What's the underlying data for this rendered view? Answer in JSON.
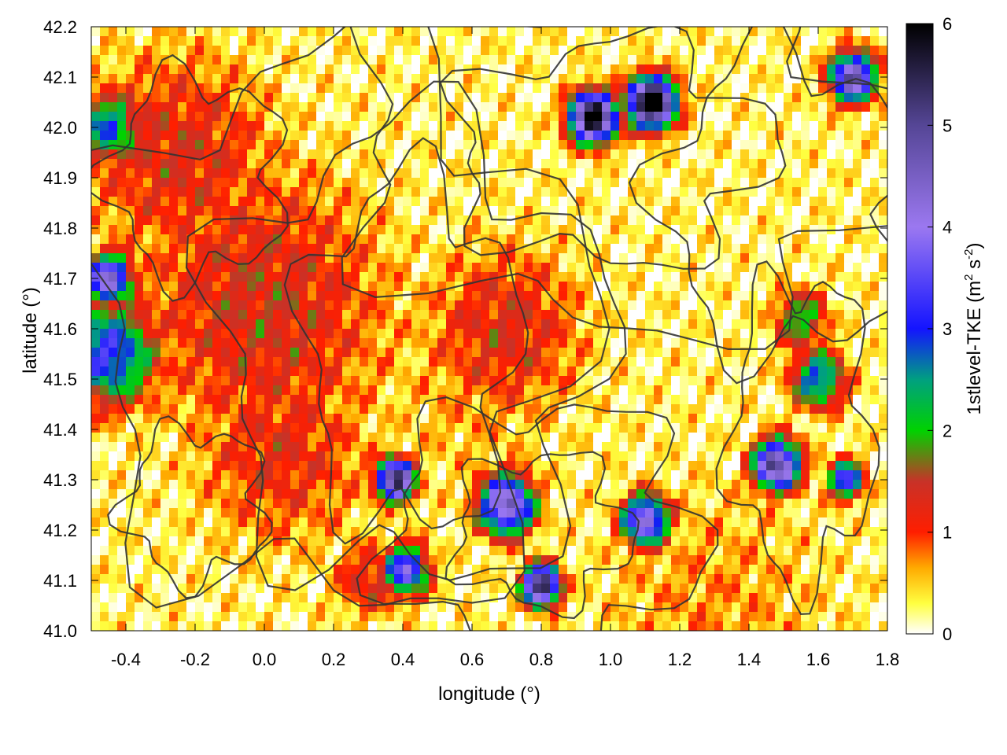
{
  "chart_data": {
    "type": "heatmap",
    "title": "",
    "xlabel": "longitude (°)",
    "ylabel": "latitude (°)",
    "colorbar_label": "1stlevel-TKE (m",
    "colorbar_label_sup1": "2",
    "colorbar_label_mid": " s",
    "colorbar_label_sup2": "-2",
    "colorbar_label_end": ")",
    "xlim": [
      -0.5,
      1.8
    ],
    "ylim": [
      41.0,
      42.2
    ],
    "zlim": [
      0,
      6
    ],
    "x_ticks": [
      "-0.4",
      "-0.2",
      "0.0",
      "0.2",
      "0.4",
      "0.6",
      "0.8",
      "1.0",
      "1.2",
      "1.4",
      "1.6",
      "1.8"
    ],
    "x_tick_values": [
      -0.4,
      -0.2,
      0.0,
      0.2,
      0.4,
      0.6,
      0.8,
      1.0,
      1.2,
      1.4,
      1.6,
      1.8
    ],
    "y_ticks": [
      "41.0",
      "41.1",
      "41.2",
      "41.3",
      "41.4",
      "41.5",
      "41.6",
      "41.7",
      "41.8",
      "41.9",
      "42.0",
      "42.1",
      "42.2"
    ],
    "y_tick_values": [
      41.0,
      41.1,
      41.2,
      41.3,
      41.4,
      41.5,
      41.6,
      41.7,
      41.8,
      41.9,
      42.0,
      42.1,
      42.2
    ],
    "z_ticks": [
      "0",
      "1",
      "2",
      "3",
      "4",
      "5",
      "6"
    ],
    "z_tick_values": [
      0,
      1,
      2,
      3,
      4,
      5,
      6
    ],
    "colormap": [
      {
        "v": 0.0,
        "color": "#ffffff"
      },
      {
        "v": 0.3,
        "color": "#ffff40"
      },
      {
        "v": 0.65,
        "color": "#ffaa00"
      },
      {
        "v": 1.0,
        "color": "#ff1e00"
      },
      {
        "v": 1.5,
        "color": "#c83228"
      },
      {
        "v": 2.0,
        "color": "#00d200"
      },
      {
        "v": 2.5,
        "color": "#00a080"
      },
      {
        "v": 3.0,
        "color": "#1414ff"
      },
      {
        "v": 4.0,
        "color": "#9b78f0"
      },
      {
        "v": 5.0,
        "color": "#554696"
      },
      {
        "v": 6.0,
        "color": "#000000"
      }
    ],
    "grid": false,
    "contour_color": "#333333",
    "features": [
      {
        "lon": 0.0,
        "lat": 41.65,
        "value": 1.2,
        "spread": 0.28
      },
      {
        "lon": -0.25,
        "lat": 41.95,
        "value": 1.1,
        "spread": 0.22
      },
      {
        "lon": 0.05,
        "lat": 41.35,
        "value": 1.0,
        "spread": 0.2
      },
      {
        "lon": 0.7,
        "lat": 41.6,
        "value": 1.1,
        "spread": 0.18
      },
      {
        "lon": -0.45,
        "lat": 41.55,
        "value": 2.8,
        "spread": 0.1
      },
      {
        "lon": -0.45,
        "lat": 41.7,
        "value": 3.6,
        "spread": 0.05
      },
      {
        "lon": -0.45,
        "lat": 42.0,
        "value": 2.3,
        "spread": 0.07
      },
      {
        "lon": 0.41,
        "lat": 41.12,
        "value": 3.2,
        "spread": 0.05
      },
      {
        "lon": 0.38,
        "lat": 41.3,
        "value": 4.8,
        "spread": 0.04
      },
      {
        "lon": 0.95,
        "lat": 42.02,
        "value": 5.5,
        "spread": 0.05
      },
      {
        "lon": 1.12,
        "lat": 42.05,
        "value": 6.0,
        "spread": 0.05
      },
      {
        "lon": 0.8,
        "lat": 41.09,
        "value": 5.0,
        "spread": 0.04
      },
      {
        "lon": 0.7,
        "lat": 41.25,
        "value": 4.0,
        "spread": 0.06
      },
      {
        "lon": 1.1,
        "lat": 41.22,
        "value": 3.8,
        "spread": 0.05
      },
      {
        "lon": 1.48,
        "lat": 41.33,
        "value": 4.5,
        "spread": 0.05
      },
      {
        "lon": 1.68,
        "lat": 41.3,
        "value": 3.0,
        "spread": 0.04
      },
      {
        "lon": 1.7,
        "lat": 42.1,
        "value": 4.2,
        "spread": 0.05
      },
      {
        "lon": 1.6,
        "lat": 41.5,
        "value": 2.5,
        "spread": 0.06
      },
      {
        "lon": 1.55,
        "lat": 41.62,
        "value": 1.8,
        "spread": 0.06
      },
      {
        "lon": 0.3,
        "lat": 41.1,
        "value": 1.1,
        "spread": 0.08
      },
      {
        "lon": 1.3,
        "lat": 41.05,
        "value": 0.6,
        "spread": 0.3
      },
      {
        "lon": 0.6,
        "lat": 41.45,
        "value": 0.5,
        "spread": 0.2
      }
    ]
  }
}
